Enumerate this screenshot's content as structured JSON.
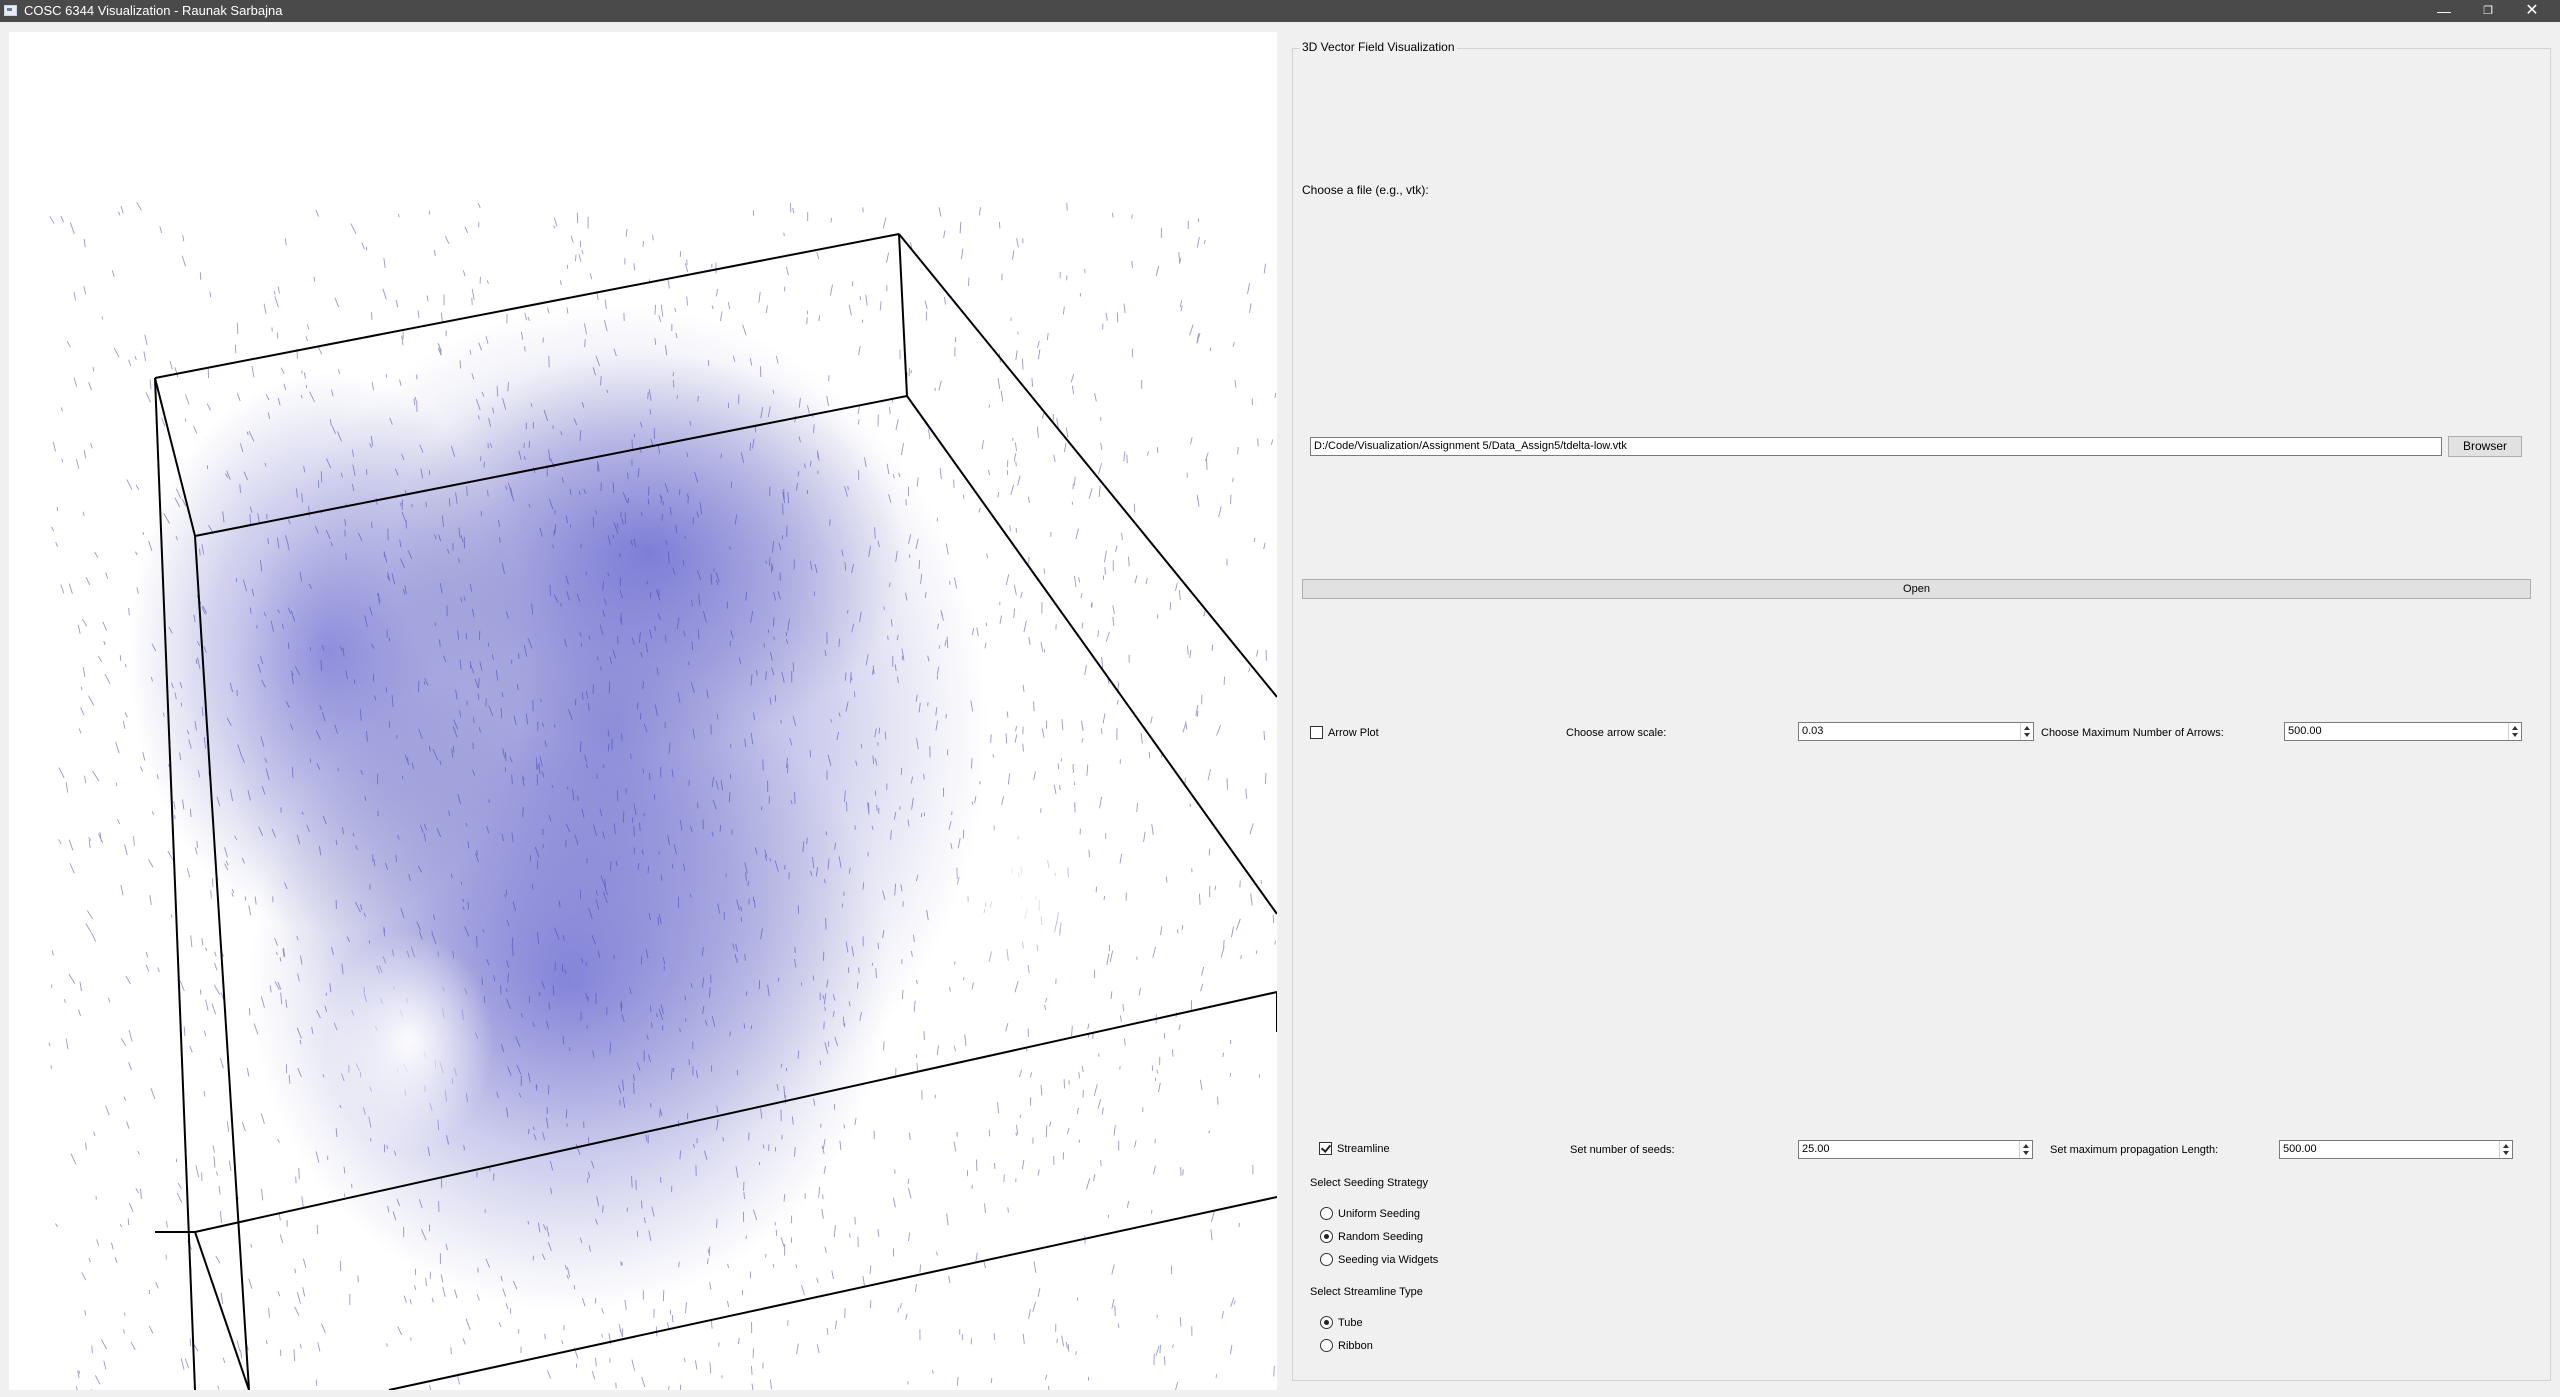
{
  "window": {
    "title": "COSC 6344 Visualization - Raunak Sarbajna"
  },
  "panel": {
    "group_title": "3D Vector Field Visualization",
    "file_label": "Choose a file (e.g., vtk):",
    "file_path": "D:/Code/Visualization/Assignment 5/Data_Assign5/tdelta-low.vtk",
    "browse_label": "Browser",
    "open_label": "Open",
    "arrow": {
      "checkbox_label": "Arrow Plot",
      "checked": false,
      "scale_label": "Choose arrow scale:",
      "scale_value": "0.03",
      "max_label": "Choose Maximum Number of Arrows:",
      "max_value": "500.00"
    },
    "streamline": {
      "checkbox_label": "Streamline",
      "checked": true,
      "seeds_label": "Set number of seeds:",
      "seeds_value": "25.00",
      "length_label": "Set maximum propagation Length:",
      "length_value": "500.00",
      "seeding_title": "Select Seeding Strategy",
      "seeding_options": [
        "Uniform Seeding",
        "Random Seeding",
        "Seeding via Widgets"
      ],
      "seeding_selected": 1,
      "type_title": "Select Streamline Type",
      "type_options": [
        "Tube",
        "Ribbon"
      ],
      "type_selected": 0
    }
  },
  "colors": {
    "vector_field": "#3f3fb4",
    "bounding_box": "#000000"
  }
}
